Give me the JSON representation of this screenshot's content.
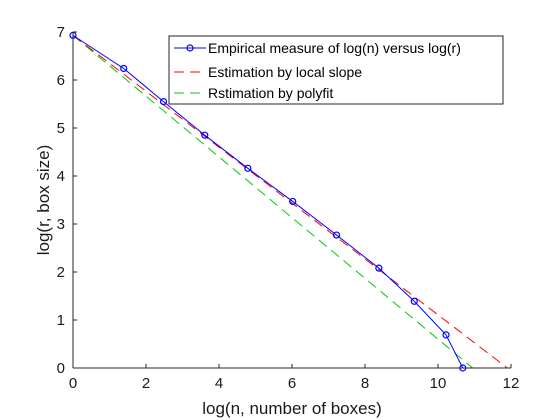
{
  "chart_data": {
    "type": "line",
    "title": "",
    "xlabel": "log(n, number of boxes)",
    "ylabel": "log(r, box size)",
    "xlim": [
      0,
      12
    ],
    "ylim": [
      0,
      7
    ],
    "xticks": [
      0,
      2,
      4,
      6,
      8,
      10,
      12
    ],
    "yticks": [
      0,
      1,
      2,
      3,
      4,
      5,
      6,
      7
    ],
    "grid": false,
    "legend_position": "top-right",
    "series": [
      {
        "name": "Empirical measure of log(n) versus log(r)",
        "style": "solid",
        "marker": "circle",
        "color": "#0000ff",
        "x": [
          0,
          1.39,
          2.48,
          3.61,
          4.79,
          6.02,
          7.22,
          8.38,
          9.35,
          10.22,
          10.68
        ],
        "y": [
          6.93,
          6.24,
          5.55,
          4.85,
          4.16,
          3.47,
          2.77,
          2.08,
          1.39,
          0.69,
          0
        ]
      },
      {
        "name": "Estimation by local slope",
        "style": "dashed",
        "marker": "none",
        "color": "#ff0000",
        "x": [
          0,
          11.9
        ],
        "y": [
          6.93,
          0
        ]
      },
      {
        "name": "Rstimation by polyfit",
        "style": "dashed",
        "marker": "none",
        "color": "#00cc00",
        "x": [
          0,
          10.95
        ],
        "y": [
          6.93,
          0
        ]
      }
    ]
  }
}
